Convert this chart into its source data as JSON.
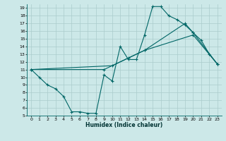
{
  "title": "",
  "xlabel": "Humidex (Indice chaleur)",
  "bg_color": "#cce8e8",
  "grid_color": "#aacccc",
  "line_color": "#006666",
  "xlim": [
    -0.5,
    23.5
  ],
  "ylim": [
    5,
    19.5
  ],
  "xticks": [
    0,
    1,
    2,
    3,
    4,
    5,
    6,
    7,
    8,
    9,
    10,
    11,
    12,
    13,
    14,
    15,
    16,
    17,
    18,
    19,
    20,
    21,
    22,
    23
  ],
  "yticks": [
    5,
    6,
    7,
    8,
    9,
    10,
    11,
    12,
    13,
    14,
    15,
    16,
    17,
    18,
    19
  ],
  "line1_x": [
    0,
    1,
    2,
    3,
    4,
    5,
    6,
    7,
    8,
    9,
    10,
    11,
    12,
    13,
    14,
    15,
    16,
    17,
    18,
    19,
    20,
    21,
    22,
    23
  ],
  "line1_y": [
    11,
    10,
    9,
    8.5,
    7.5,
    5.5,
    5.5,
    5.3,
    5.3,
    10.3,
    9.5,
    14,
    12.3,
    12.3,
    15.5,
    19.2,
    19.2,
    18,
    17.5,
    16.8,
    15.8,
    14.8,
    13.0,
    11.7
  ],
  "line2_x": [
    0,
    10,
    14,
    20,
    23
  ],
  "line2_y": [
    11,
    11.5,
    13.5,
    15.5,
    11.7
  ],
  "line3_x": [
    0,
    9,
    12,
    14,
    19,
    20,
    23
  ],
  "line3_y": [
    11,
    11.0,
    12.5,
    13.5,
    17.0,
    15.8,
    11.7
  ]
}
